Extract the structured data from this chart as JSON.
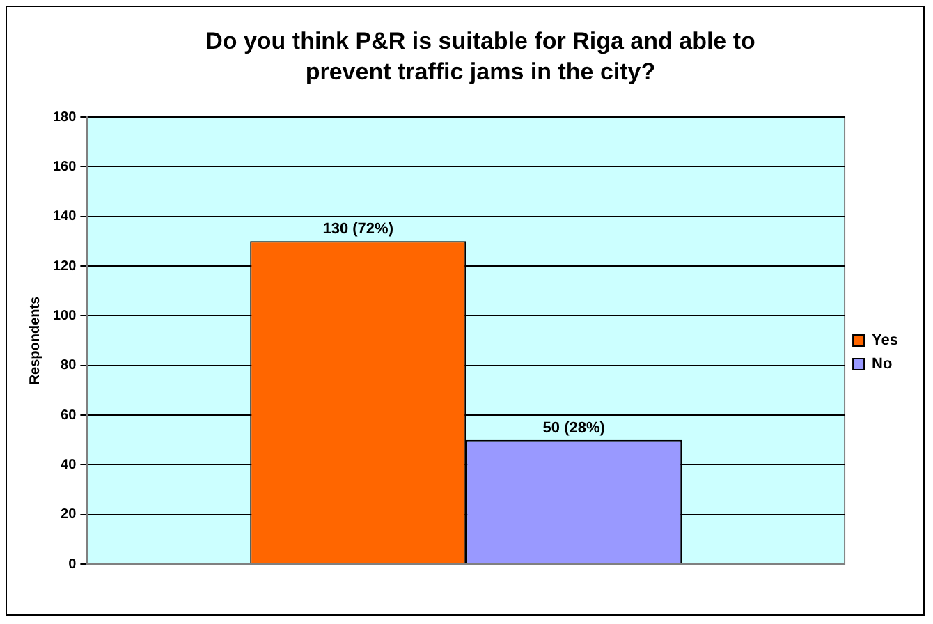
{
  "chart_data": {
    "type": "bar",
    "title": "Do you think P&R is suitable for Riga and able to prevent traffic jams in the city?",
    "ylabel": "Respondents",
    "categories": [
      null
    ],
    "series": [
      {
        "name": "Yes",
        "color": "#ff6600",
        "values": [
          130
        ],
        "value_labels": [
          "130 (72%)"
        ]
      },
      {
        "name": "No",
        "color": "#9999ff",
        "values": [
          50
        ],
        "value_labels": [
          "50 (28%)"
        ]
      }
    ],
    "ylim": [
      0,
      180
    ],
    "yticks": [
      0,
      20,
      40,
      60,
      80,
      100,
      120,
      140,
      160,
      180
    ],
    "grid": "y",
    "legend": "right"
  }
}
